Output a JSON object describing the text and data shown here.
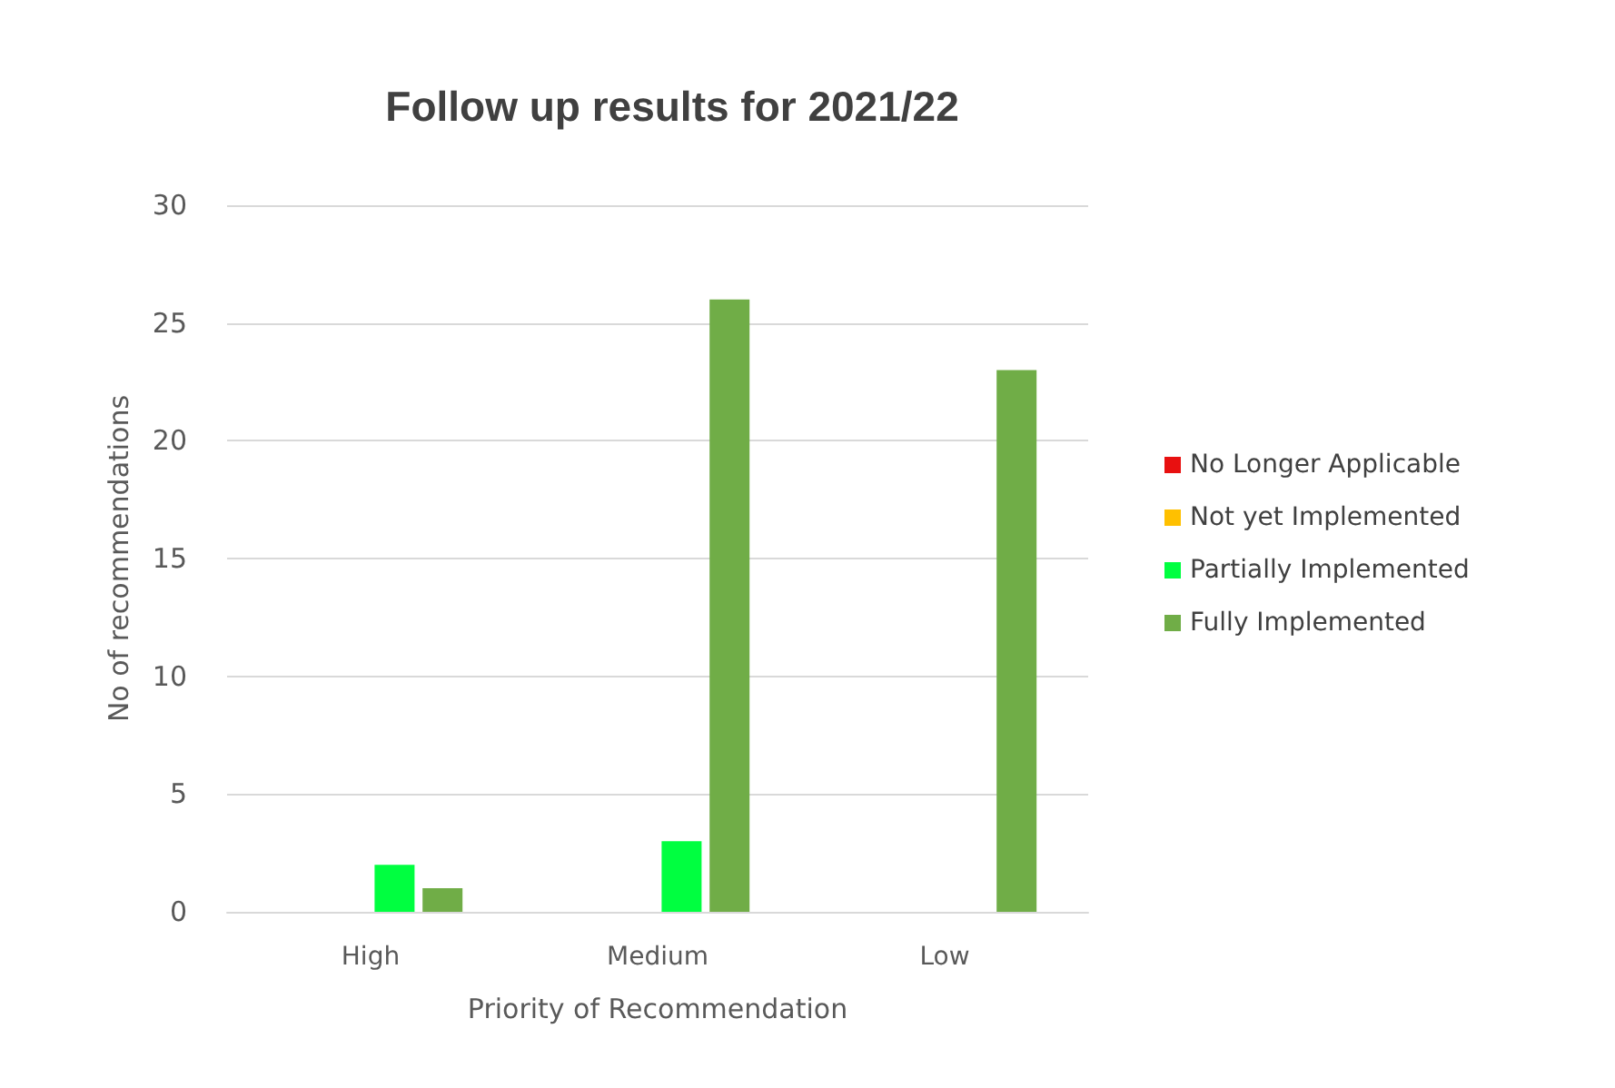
{
  "chart_data": {
    "type": "bar",
    "title": "Follow up results for 2021/22",
    "xlabel": "Priority of Recommendation",
    "ylabel": "No of recommendations",
    "categories": [
      "High",
      "Medium",
      "Low"
    ],
    "series": [
      {
        "name": "No Longer Applicable",
        "color": "#e81010",
        "values": [
          0,
          0,
          0
        ]
      },
      {
        "name": "Not yet Implemented",
        "color": "#ffc000",
        "values": [
          0,
          0,
          0
        ]
      },
      {
        "name": "Partially Implemented",
        "color": "#00ff40",
        "values": [
          2,
          3,
          0
        ]
      },
      {
        "name": "Fully Implemented",
        "color": "#70ad47",
        "values": [
          1,
          26,
          23
        ]
      }
    ],
    "ylim": [
      0,
      30
    ],
    "yticks": [
      0,
      5,
      10,
      15,
      20,
      25,
      30
    ],
    "grid": "y",
    "legend": "right"
  }
}
